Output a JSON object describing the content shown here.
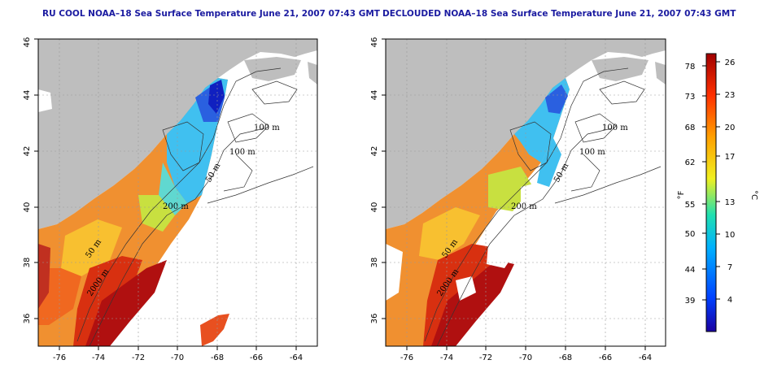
{
  "titles": {
    "left": "RU COOL NOAA–18 Sea Surface Temperature June 21, 2007 07:43 GMT",
    "right": "DECLOUDED NOAA–18 Sea Surface Temperature June 21, 2007 07:43 GMT"
  },
  "axes": {
    "lon_ticks": [
      "-76",
      "-74",
      "-72",
      "-70",
      "-68",
      "-66",
      "-64"
    ],
    "lat_ticks": [
      "36",
      "38",
      "40",
      "42",
      "44",
      "46"
    ]
  },
  "contour_labels": {
    "m100a": "100 m",
    "m100b": "100 m",
    "m200": "200 m",
    "m50a": "50 m",
    "m50b": "50 m",
    "m2000": "2000 m"
  },
  "colorbar": {
    "f_label": "°F",
    "c_label": "°C",
    "f_ticks": [
      "78",
      "73",
      "68",
      "62",
      "55",
      "50",
      "44",
      "39"
    ],
    "c_ticks": [
      "26",
      "23",
      "20",
      "17",
      "13",
      "10",
      "7",
      "4"
    ]
  },
  "colors": {
    "land": "#bebebe",
    "title": "#1a1aa0",
    "warm": "#b01010",
    "cool": "#1020c0"
  }
}
